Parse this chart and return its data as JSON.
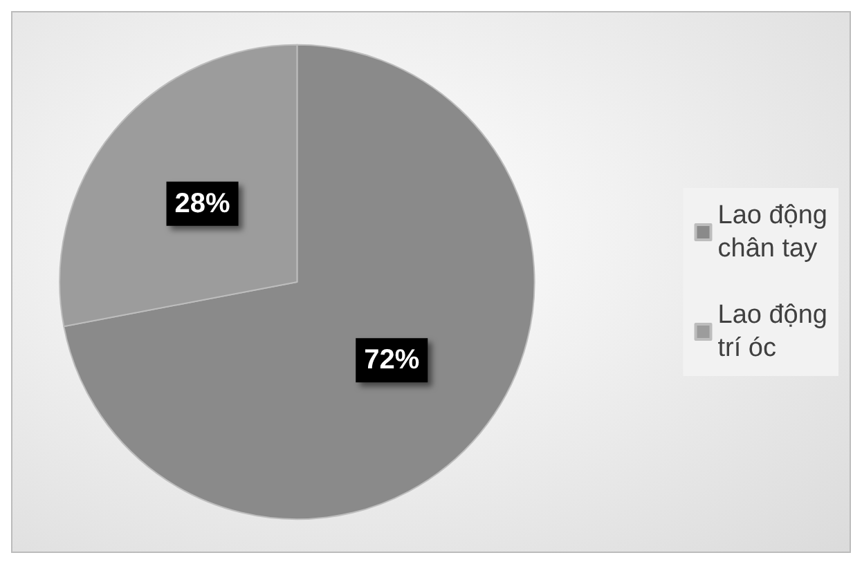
{
  "chart_data": {
    "type": "pie",
    "categories": [
      "Lao động chân tay",
      "Lao động trí óc"
    ],
    "values": [
      72,
      28
    ],
    "colors": [
      "#8a8a8a",
      "#9c9c9c"
    ],
    "value_labels": [
      "72%",
      "28%"
    ],
    "legend": "right"
  }
}
